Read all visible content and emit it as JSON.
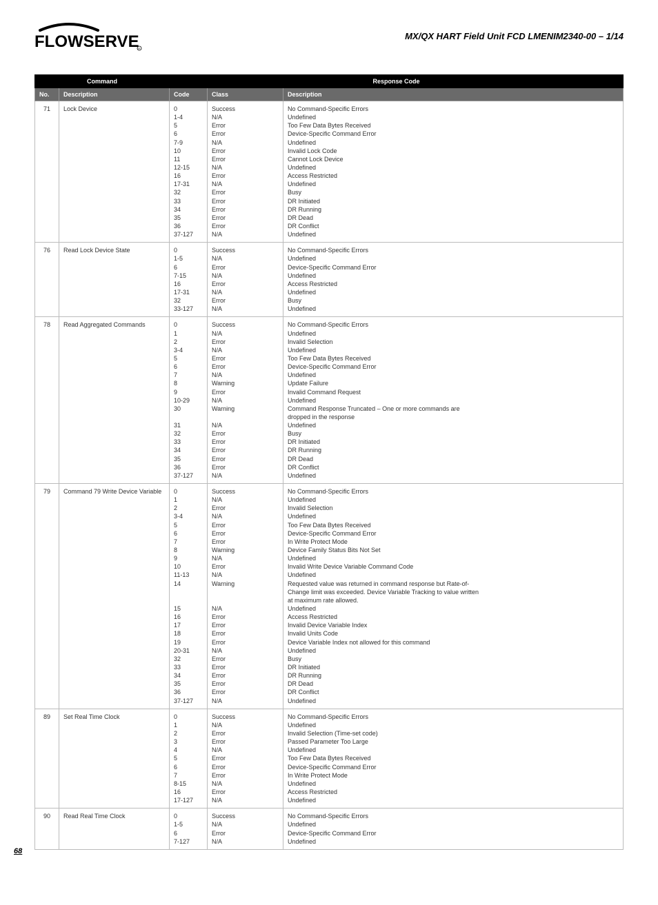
{
  "doc_title": "MX/QX HART Field Unit  FCD LMENIM2340-00 – 1/14",
  "page_number": "68",
  "logo_text": "FLOWSERVE",
  "columns": {
    "grp_command": "Command",
    "grp_response": "Response Code",
    "no": "No.",
    "cmd_desc": "Description",
    "code": "Code",
    "class": "Class",
    "resp_desc": "Description"
  },
  "rows": [
    {
      "no": "71",
      "command": "Lock Device",
      "codes": [
        "0",
        "1-4",
        "5",
        "6",
        "7-9",
        "10",
        "11",
        "12-15",
        "16",
        "17-31",
        "32",
        "33",
        "34",
        "35",
        "36",
        "37-127"
      ],
      "classes": [
        "Success",
        "N/A",
        "Error",
        "Error",
        "N/A",
        "Error",
        "Error",
        "N/A",
        "Error",
        "N/A",
        "Error",
        "Error",
        "Error",
        "Error",
        "Error",
        "N/A"
      ],
      "descs": [
        "No Command-Specific Errors",
        "Undefined",
        "Too Few Data Bytes Received",
        "Device-Specific Command Error",
        "Undefined",
        "Invalid Lock Code",
        "Cannot Lock Device",
        "Undefined",
        "Access Restricted",
        "Undefined",
        "Busy",
        "DR Initiated",
        "DR Running",
        "DR Dead",
        "DR Conflict",
        "Undefined"
      ]
    },
    {
      "no": "76",
      "command": "Read Lock Device State",
      "codes": [
        "0",
        "1-5",
        "6",
        "7-15",
        "16",
        "17-31",
        "32",
        "33-127"
      ],
      "classes": [
        "Success",
        "N/A",
        "Error",
        "N/A",
        "Error",
        "N/A",
        "Error",
        "N/A"
      ],
      "descs": [
        "No Command-Specific Errors",
        "Undefined",
        "Device-Specific Command Error",
        "Undefined",
        "Access Restricted",
        "Undefined",
        "Busy",
        "Undefined"
      ]
    },
    {
      "no": "78",
      "command": "Read Aggregated Commands",
      "codes": [
        "0",
        "1",
        "2",
        "3-4",
        "5",
        "6",
        "7",
        "8",
        "9",
        "10-29",
        "30",
        "",
        "31",
        "32",
        "33",
        "34",
        "35",
        "36",
        "37-127"
      ],
      "classes": [
        "Success",
        "N/A",
        "Error",
        "N/A",
        "Error",
        "Error",
        "N/A",
        "Warning",
        "Error",
        "N/A",
        "Warning",
        "",
        "N/A",
        "Error",
        "Error",
        "Error",
        "Error",
        "Error",
        "N/A"
      ],
      "descs": [
        "No Command-Specific Errors",
        "Undefined",
        "Invalid Selection",
        "Undefined",
        "Too Few Data Bytes Received",
        "Device-Specific Command Error",
        "Undefined",
        "Update Failure",
        "Invalid Command Request",
        "Undefined",
        "Command Response Truncated – One or more commands are",
        "dropped in the response",
        "Undefined",
        "Busy",
        "DR Initiated",
        "DR Running",
        "DR Dead",
        "DR Conflict",
        "Undefined"
      ]
    },
    {
      "no": "79",
      "command": "Command 79 Write Device Variable",
      "codes": [
        "0",
        "1",
        "2",
        "3-4",
        "5",
        "6",
        "7",
        "8",
        "9",
        "10",
        "11-13",
        "14",
        "",
        "",
        "15",
        "16",
        "17",
        "18",
        "19",
        "20-31",
        "32",
        "33",
        "34",
        "35",
        "36",
        "37-127"
      ],
      "classes": [
        "Success",
        "N/A",
        "Error",
        "N/A",
        "Error",
        "Error",
        "Error",
        "Warning",
        "N/A",
        "Error",
        "N/A",
        "Warning",
        "",
        "",
        "N/A",
        "Error",
        "Error",
        "Error",
        "Error",
        "N/A",
        "Error",
        "Error",
        "Error",
        "Error",
        "Error",
        "N/A"
      ],
      "descs": [
        "No Command-Specific Errors",
        "Undefined",
        "Invalid Selection",
        "Undefined",
        "Too Few Data Bytes Received",
        "Device-Specific Command Error",
        "In Write Protect Mode",
        "Device Family Status Bits Not Set",
        "Undefined",
        "Invalid Write Device Variable Command Code",
        "Undefined",
        "Requested value was returned in command response but Rate-of-",
        "Change limit was exceeded.  Device Variable Tracking to value written",
        "at maximum rate allowed.",
        "Undefined",
        "Access Restricted",
        "Invalid Device Variable Index",
        "Invalid Units Code",
        "Device Variable Index not allowed for this command",
        "Undefined",
        "Busy",
        "DR Initiated",
        "DR Running",
        "DR Dead",
        "DR Conflict",
        "Undefined"
      ]
    },
    {
      "no": "89",
      "command": "Set Real Time Clock",
      "codes": [
        "0",
        "1",
        "2",
        "3",
        "4",
        "5",
        "6",
        "7",
        "8-15",
        "16",
        "17-127"
      ],
      "classes": [
        "Success",
        "N/A",
        "Error",
        "Error",
        "N/A",
        "Error",
        "Error",
        "Error",
        "N/A",
        "Error",
        "N/A"
      ],
      "descs": [
        "No Command-Specific Errors",
        "Undefined",
        "Invalid Selection (Time-set code)",
        "Passed Parameter Too Large",
        "Undefined",
        "Too Few Data Bytes Received",
        "Device-Specific Command Error",
        "In Write Protect Mode",
        "Undefined",
        "Access Restricted",
        "Undefined"
      ]
    },
    {
      "no": "90",
      "command": "Read Real Time Clock",
      "codes": [
        "0",
        "1-5",
        "6",
        "7-127"
      ],
      "classes": [
        "Success",
        "N/A",
        "Error",
        "N/A"
      ],
      "descs": [
        "No Command-Specific Errors",
        "Undefined",
        "Device-Specific Command Error",
        "Undefined"
      ]
    }
  ]
}
